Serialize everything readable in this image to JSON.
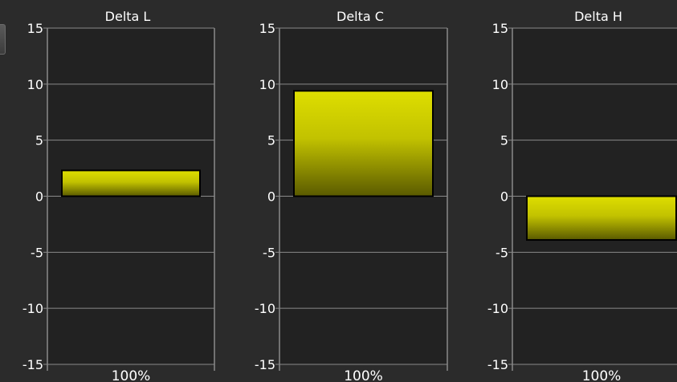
{
  "theme": {
    "background": "#2b2b2b",
    "plot_background": "#222222",
    "grid_color": "#8a8a8a",
    "text_color": "#ffffff",
    "bar_top": "#dede00",
    "bar_mid": "#c2c200",
    "bar_bottom": "#5a5a00",
    "bar_border": "#000000"
  },
  "chart_data": [
    {
      "type": "bar",
      "title": "Delta L",
      "categories": [
        "100%"
      ],
      "values": [
        2.3
      ],
      "ylim": [
        -15,
        15
      ],
      "yticks": [
        15,
        10,
        5,
        0,
        -5,
        -10,
        -15
      ],
      "grid": true
    },
    {
      "type": "bar",
      "title": "Delta C",
      "categories": [
        "100%"
      ],
      "values": [
        9.4
      ],
      "ylim": [
        -15,
        15
      ],
      "yticks": [
        15,
        10,
        5,
        0,
        -5,
        -10,
        -15
      ],
      "grid": true
    },
    {
      "type": "bar",
      "title": "Delta H",
      "categories": [
        "100%"
      ],
      "values": [
        -3.9
      ],
      "ylim": [
        -15,
        15
      ],
      "yticks": [
        15,
        10,
        5,
        0,
        -5,
        -10,
        -15
      ],
      "grid": true
    }
  ]
}
